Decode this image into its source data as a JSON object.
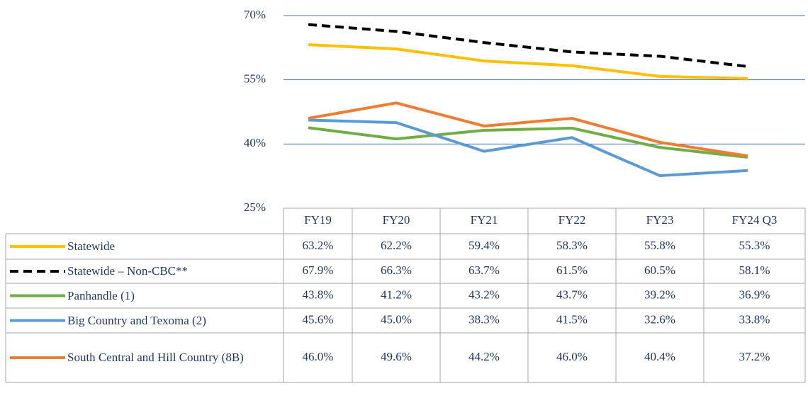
{
  "chart_data": {
    "type": "line",
    "categories": [
      "FY19",
      "FY20",
      "FY21",
      "FY22",
      "FY23",
      "FY24 Q3"
    ],
    "series": [
      {
        "name": "Statewide",
        "color": "#FFC000",
        "dashed": false,
        "values": [
          63.2,
          62.2,
          59.4,
          58.3,
          55.8,
          55.3
        ],
        "value_labels": [
          "63.2%",
          "62.2%",
          "59.4%",
          "58.3%",
          "55.8%",
          "55.3%"
        ]
      },
      {
        "name": "Statewide – Non-CBC**",
        "color": "#000000",
        "dashed": true,
        "values": [
          67.9,
          66.3,
          63.7,
          61.5,
          60.5,
          58.1
        ],
        "value_labels": [
          "67.9%",
          "66.3%",
          "63.7%",
          "61.5%",
          "60.5%",
          "58.1%"
        ]
      },
      {
        "name": "Panhandle (1)",
        "color": "#70AD47",
        "dashed": false,
        "values": [
          43.8,
          41.2,
          43.2,
          43.7,
          39.2,
          36.9
        ],
        "value_labels": [
          "43.8%",
          "41.2%",
          "43.2%",
          "43.7%",
          "39.2%",
          "36.9%"
        ]
      },
      {
        "name": "Big Country and Texoma (2)",
        "color": "#5B9BD5",
        "dashed": false,
        "values": [
          45.6,
          45.0,
          38.3,
          41.5,
          32.6,
          33.8
        ],
        "value_labels": [
          "45.6%",
          "45.0%",
          "38.3%",
          "41.5%",
          "32.6%",
          "33.8%"
        ]
      },
      {
        "name": "South Central and Hill Country (8B)",
        "color": "#ED7D31",
        "dashed": false,
        "values": [
          46.0,
          49.6,
          44.2,
          46.0,
          40.4,
          37.2
        ],
        "value_labels": [
          "46.0%",
          "49.6%",
          "44.2%",
          "46.0%",
          "40.4%",
          "37.2%"
        ]
      }
    ],
    "ylim": [
      25,
      70
    ],
    "yticks": [
      {
        "value": 25,
        "label": "25%"
      },
      {
        "value": 40,
        "label": "40%"
      },
      {
        "value": 55,
        "label": "55%"
      },
      {
        "value": 70,
        "label": "70%"
      }
    ],
    "grid": true,
    "grid_color": "#4472C4"
  }
}
